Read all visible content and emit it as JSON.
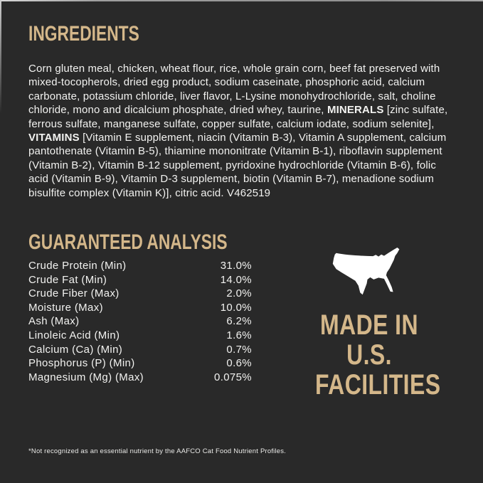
{
  "page": {
    "background_color": "#292929",
    "accent_gold": "#d4b78a",
    "text_color": "#f2f2f0"
  },
  "ingredients": {
    "heading": "INGREDIENTS",
    "segments": [
      {
        "text": "Corn gluten meal, chicken, wheat flour, rice, whole grain corn, beef fat preserved with mixed-tocopherols, dried egg product, sodium caseinate, phosphoric acid, calcium carbonate, potassium chloride, liver flavor, L-Lysine monohydrochloride, salt, choline chloride, mono and dicalcium phosphate, dried whey, taurine, ",
        "bold": false
      },
      {
        "text": "MINERALS",
        "bold": true
      },
      {
        "text": " [zinc sulfate, ferrous sulfate, manganese sulfate, copper sulfate, calcium iodate, sodium selenite], ",
        "bold": false
      },
      {
        "text": "VITAMINS",
        "bold": true
      },
      {
        "text": " [Vitamin E supplement, niacin (Vitamin B-3), Vitamin A supplement, calcium pantothenate (Vitamin B-5), thiamine mononitrate (Vitamin B-1), riboflavin supplement (Vitamin B-2), Vitamin B-12 supplement, pyridoxine hydrochloride (Vitamin B-6), folic acid (Vitamin B-9), Vitamin D-3 supplement, biotin (Vitamin B-7), menadione sodium bisulfite complex (Vitamin K)], citric acid. V462519",
        "bold": false
      }
    ]
  },
  "guaranteed_analysis": {
    "heading": "GUARANTEED ANALYSIS",
    "rows": [
      {
        "label": "Crude Protein (Min)",
        "value": "31.0%"
      },
      {
        "label": "Crude Fat (Min)",
        "value": "14.0%"
      },
      {
        "label": "Crude Fiber (Max)",
        "value": "2.0%"
      },
      {
        "label": "Moisture (Max)",
        "value": "10.0%"
      },
      {
        "label": "Ash (Max)",
        "value": "6.2%"
      },
      {
        "label": "Linoleic Acid (Min)",
        "value": "1.6%"
      },
      {
        "label": "Calcium (Ca) (Min)",
        "value": "0.7%"
      },
      {
        "label": "Phosphorus (P) (Min)",
        "value": "0.6%"
      },
      {
        "label": "Magnesium (Mg) (Max)",
        "value": "0.075%"
      }
    ]
  },
  "made_in": {
    "icon": "usa-map-icon",
    "icon_color": "#ffffff",
    "lines": [
      "MADE IN",
      "U.S.",
      "FACILITIES"
    ]
  },
  "footnote": "*Not recognized as an essential nutrient by the AAFCO Cat Food Nutrient Profiles."
}
